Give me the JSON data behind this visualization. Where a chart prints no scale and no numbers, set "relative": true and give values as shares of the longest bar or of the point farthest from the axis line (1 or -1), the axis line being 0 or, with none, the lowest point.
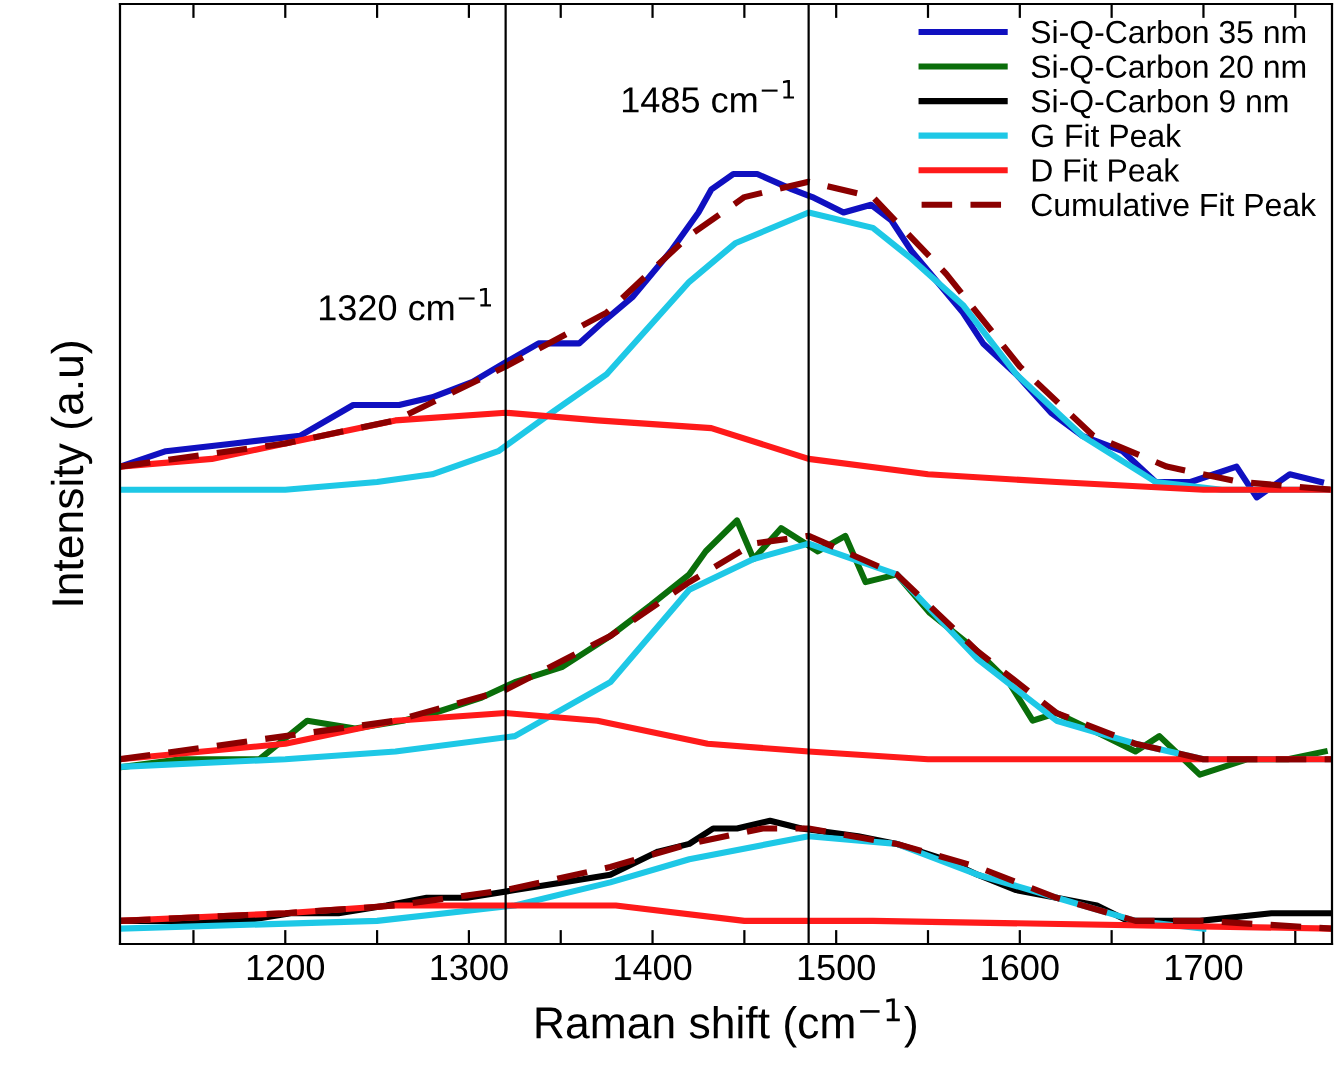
{
  "chart_data": {
    "type": "line",
    "relative": true,
    "xlabel": "Raman shift (cm$^{−1}$)",
    "ylabel": "Intensity (a.u)",
    "xlim": [
      1110,
      1770
    ],
    "xticks": [
      {
        "value": 1150,
        "label": null
      },
      1200,
      {
        "value": 1250,
        "label": null
      },
      1300,
      {
        "value": 1350,
        "label": null
      },
      1400,
      {
        "value": 1450,
        "label": null
      },
      1500,
      {
        "value": 1550,
        "label": null
      },
      1600,
      {
        "value": 1650,
        "label": null
      },
      1700,
      {
        "value": 1750,
        "label": null
      }
    ],
    "tick_labels": "x",
    "grid": false,
    "legend": "top right",
    "marker": "none",
    "ref_lines": [
      {
        "axis": "x",
        "value": 1320,
        "label": "1320 cm$^{−1}$",
        "color": "#000000"
      },
      {
        "axis": "x",
        "value": 1485,
        "label": "1485 cm$^{−1}$",
        "color": "#000000"
      }
    ],
    "series": [
      {
        "name": "Si-Q-Carbon 35 nm",
        "color": "#1010c0",
        "x": [
          1110,
          1135,
          1172,
          1208,
          1237,
          1262,
          1280,
          1302,
          1316,
          1338,
          1360,
          1374,
          1389,
          1410,
          1425,
          1432,
          1444,
          1457,
          1476,
          1487,
          1504,
          1519,
          1530,
          1541,
          1555,
          1569,
          1580,
          1598,
          1617,
          1634,
          1656,
          1674,
          1693,
          1718,
          1729,
          1747,
          1764
        ],
        "values": [
          0.62,
          0.64,
          0.65,
          0.66,
          0.7,
          0.7,
          0.71,
          0.73,
          0.75,
          0.78,
          0.78,
          0.81,
          0.84,
          0.9,
          0.95,
          0.98,
          1.0,
          1.0,
          0.98,
          0.97,
          0.95,
          0.96,
          0.94,
          0.9,
          0.86,
          0.82,
          0.78,
          0.74,
          0.69,
          0.66,
          0.64,
          0.6,
          0.6,
          0.62,
          0.58,
          0.61,
          0.6
        ]
      },
      {
        "name": "Si-Q-Carbon 20 nm",
        "color": "#0a6e0a",
        "x": [
          1112,
          1143,
          1186,
          1212,
          1238,
          1264,
          1281,
          1307,
          1325,
          1351,
          1377,
          1399,
          1420,
          1429,
          1446,
          1455,
          1470,
          1490,
          1505,
          1516,
          1533,
          1551,
          1577,
          1594,
          1607,
          1620,
          1646,
          1663,
          1676,
          1698,
          1724,
          1746,
          1766
        ],
        "values": [
          0.23,
          0.24,
          0.24,
          0.29,
          0.28,
          0.29,
          0.3,
          0.32,
          0.34,
          0.36,
          0.4,
          0.44,
          0.48,
          0.51,
          0.55,
          0.5,
          0.54,
          0.51,
          0.53,
          0.47,
          0.48,
          0.43,
          0.38,
          0.34,
          0.29,
          0.3,
          0.27,
          0.25,
          0.27,
          0.22,
          0.24,
          0.24,
          0.25
        ]
      },
      {
        "name": "Si-Q-Carbon 9 nm",
        "color": "#000000",
        "x": [
          1112,
          1143,
          1177,
          1203,
          1229,
          1255,
          1277,
          1299,
          1325,
          1351,
          1377,
          1403,
          1420,
          1433,
          1446,
          1464,
          1481,
          1512,
          1533,
          1559,
          1577,
          1598,
          1620,
          1642,
          1659,
          1698,
          1737,
          1768
        ],
        "values": [
          0.03,
          0.03,
          0.03,
          0.04,
          0.04,
          0.05,
          0.06,
          0.06,
          0.07,
          0.08,
          0.09,
          0.12,
          0.13,
          0.15,
          0.15,
          0.16,
          0.15,
          0.14,
          0.13,
          0.11,
          0.09,
          0.07,
          0.06,
          0.05,
          0.03,
          0.03,
          0.04,
          0.04
        ]
      },
      {
        "name": "G Fit Peak",
        "color": "#1ec8e6",
        "x": [
          1110,
          1200,
          1250,
          1280,
          1316,
          1345,
          1375,
          1420,
          1445,
          1485,
          1520,
          1541,
          1569,
          1598,
          1634,
          1674,
          1710,
          1770
        ],
        "values": [
          0.59,
          0.59,
          0.6,
          0.61,
          0.64,
          0.69,
          0.74,
          0.86,
          0.91,
          0.95,
          0.93,
          0.89,
          0.83,
          0.74,
          0.66,
          0.6,
          0.59,
          0.59
        ]
      },
      {
        "color": "#1ec8e6",
        "x": [
          1110,
          1200,
          1260,
          1325,
          1377,
          1420,
          1455,
          1485,
          1533,
          1577,
          1620,
          1663,
          1700,
          1770
        ],
        "values": [
          0.23,
          0.24,
          0.25,
          0.27,
          0.34,
          0.46,
          0.5,
          0.52,
          0.48,
          0.37,
          0.29,
          0.26,
          0.24,
          0.24
        ]
      },
      {
        "color": "#1ec8e6",
        "x": [
          1110,
          1250,
          1325,
          1377,
          1420,
          1485,
          1533,
          1577,
          1620,
          1663,
          1700
        ],
        "values": [
          0.02,
          0.03,
          0.05,
          0.08,
          0.11,
          0.14,
          0.13,
          0.09,
          0.06,
          0.03,
          0.02
        ]
      },
      {
        "name": "D Fit Peak",
        "color": "#ff1a1a",
        "x": [
          1110,
          1160,
          1200,
          1260,
          1320,
          1370,
          1432,
          1485,
          1550,
          1620,
          1700,
          1770
        ],
        "values": [
          0.62,
          0.63,
          0.65,
          0.68,
          0.69,
          0.68,
          0.67,
          0.63,
          0.61,
          0.6,
          0.59,
          0.59
        ]
      },
      {
        "color": "#ff1a1a",
        "x": [
          1110,
          1200,
          1260,
          1320,
          1370,
          1430,
          1485,
          1550,
          1770
        ],
        "values": [
          0.24,
          0.26,
          0.29,
          0.3,
          0.29,
          0.26,
          0.25,
          0.24,
          0.24
        ]
      },
      {
        "color": "#ff1a1a",
        "x": [
          1110,
          1200,
          1260,
          1320,
          1380,
          1450,
          1520,
          1770
        ],
        "values": [
          0.03,
          0.04,
          0.05,
          0.05,
          0.05,
          0.03,
          0.03,
          0.02
        ]
      },
      {
        "name": "Cumulative Fit Peak",
        "color": "#8b0000",
        "line_style": "dashed",
        "x": [
          1110,
          1200,
          1260,
          1320,
          1375,
          1420,
          1450,
          1485,
          1520,
          1560,
          1600,
          1640,
          1680,
          1720,
          1770
        ],
        "values": [
          0.62,
          0.65,
          0.68,
          0.75,
          0.82,
          0.92,
          0.97,
          0.99,
          0.97,
          0.87,
          0.75,
          0.66,
          0.62,
          0.6,
          0.59
        ]
      },
      {
        "color": "#8b0000",
        "line_style": "dashed",
        "x": [
          1110,
          1200,
          1260,
          1320,
          1377,
          1420,
          1455,
          1485,
          1533,
          1577,
          1620,
          1663,
          1700,
          1770
        ],
        "values": [
          0.24,
          0.27,
          0.29,
          0.33,
          0.4,
          0.47,
          0.52,
          0.53,
          0.48,
          0.38,
          0.3,
          0.26,
          0.24,
          0.24
        ]
      },
      {
        "color": "#8b0000",
        "line_style": "dashed",
        "x": [
          1110,
          1200,
          1260,
          1320,
          1377,
          1420,
          1460,
          1485,
          1533,
          1577,
          1620,
          1663,
          1700,
          1770
        ],
        "values": [
          0.03,
          0.04,
          0.05,
          0.07,
          0.1,
          0.13,
          0.15,
          0.15,
          0.13,
          0.1,
          0.06,
          0.03,
          0.03,
          0.02
        ]
      }
    ]
  }
}
